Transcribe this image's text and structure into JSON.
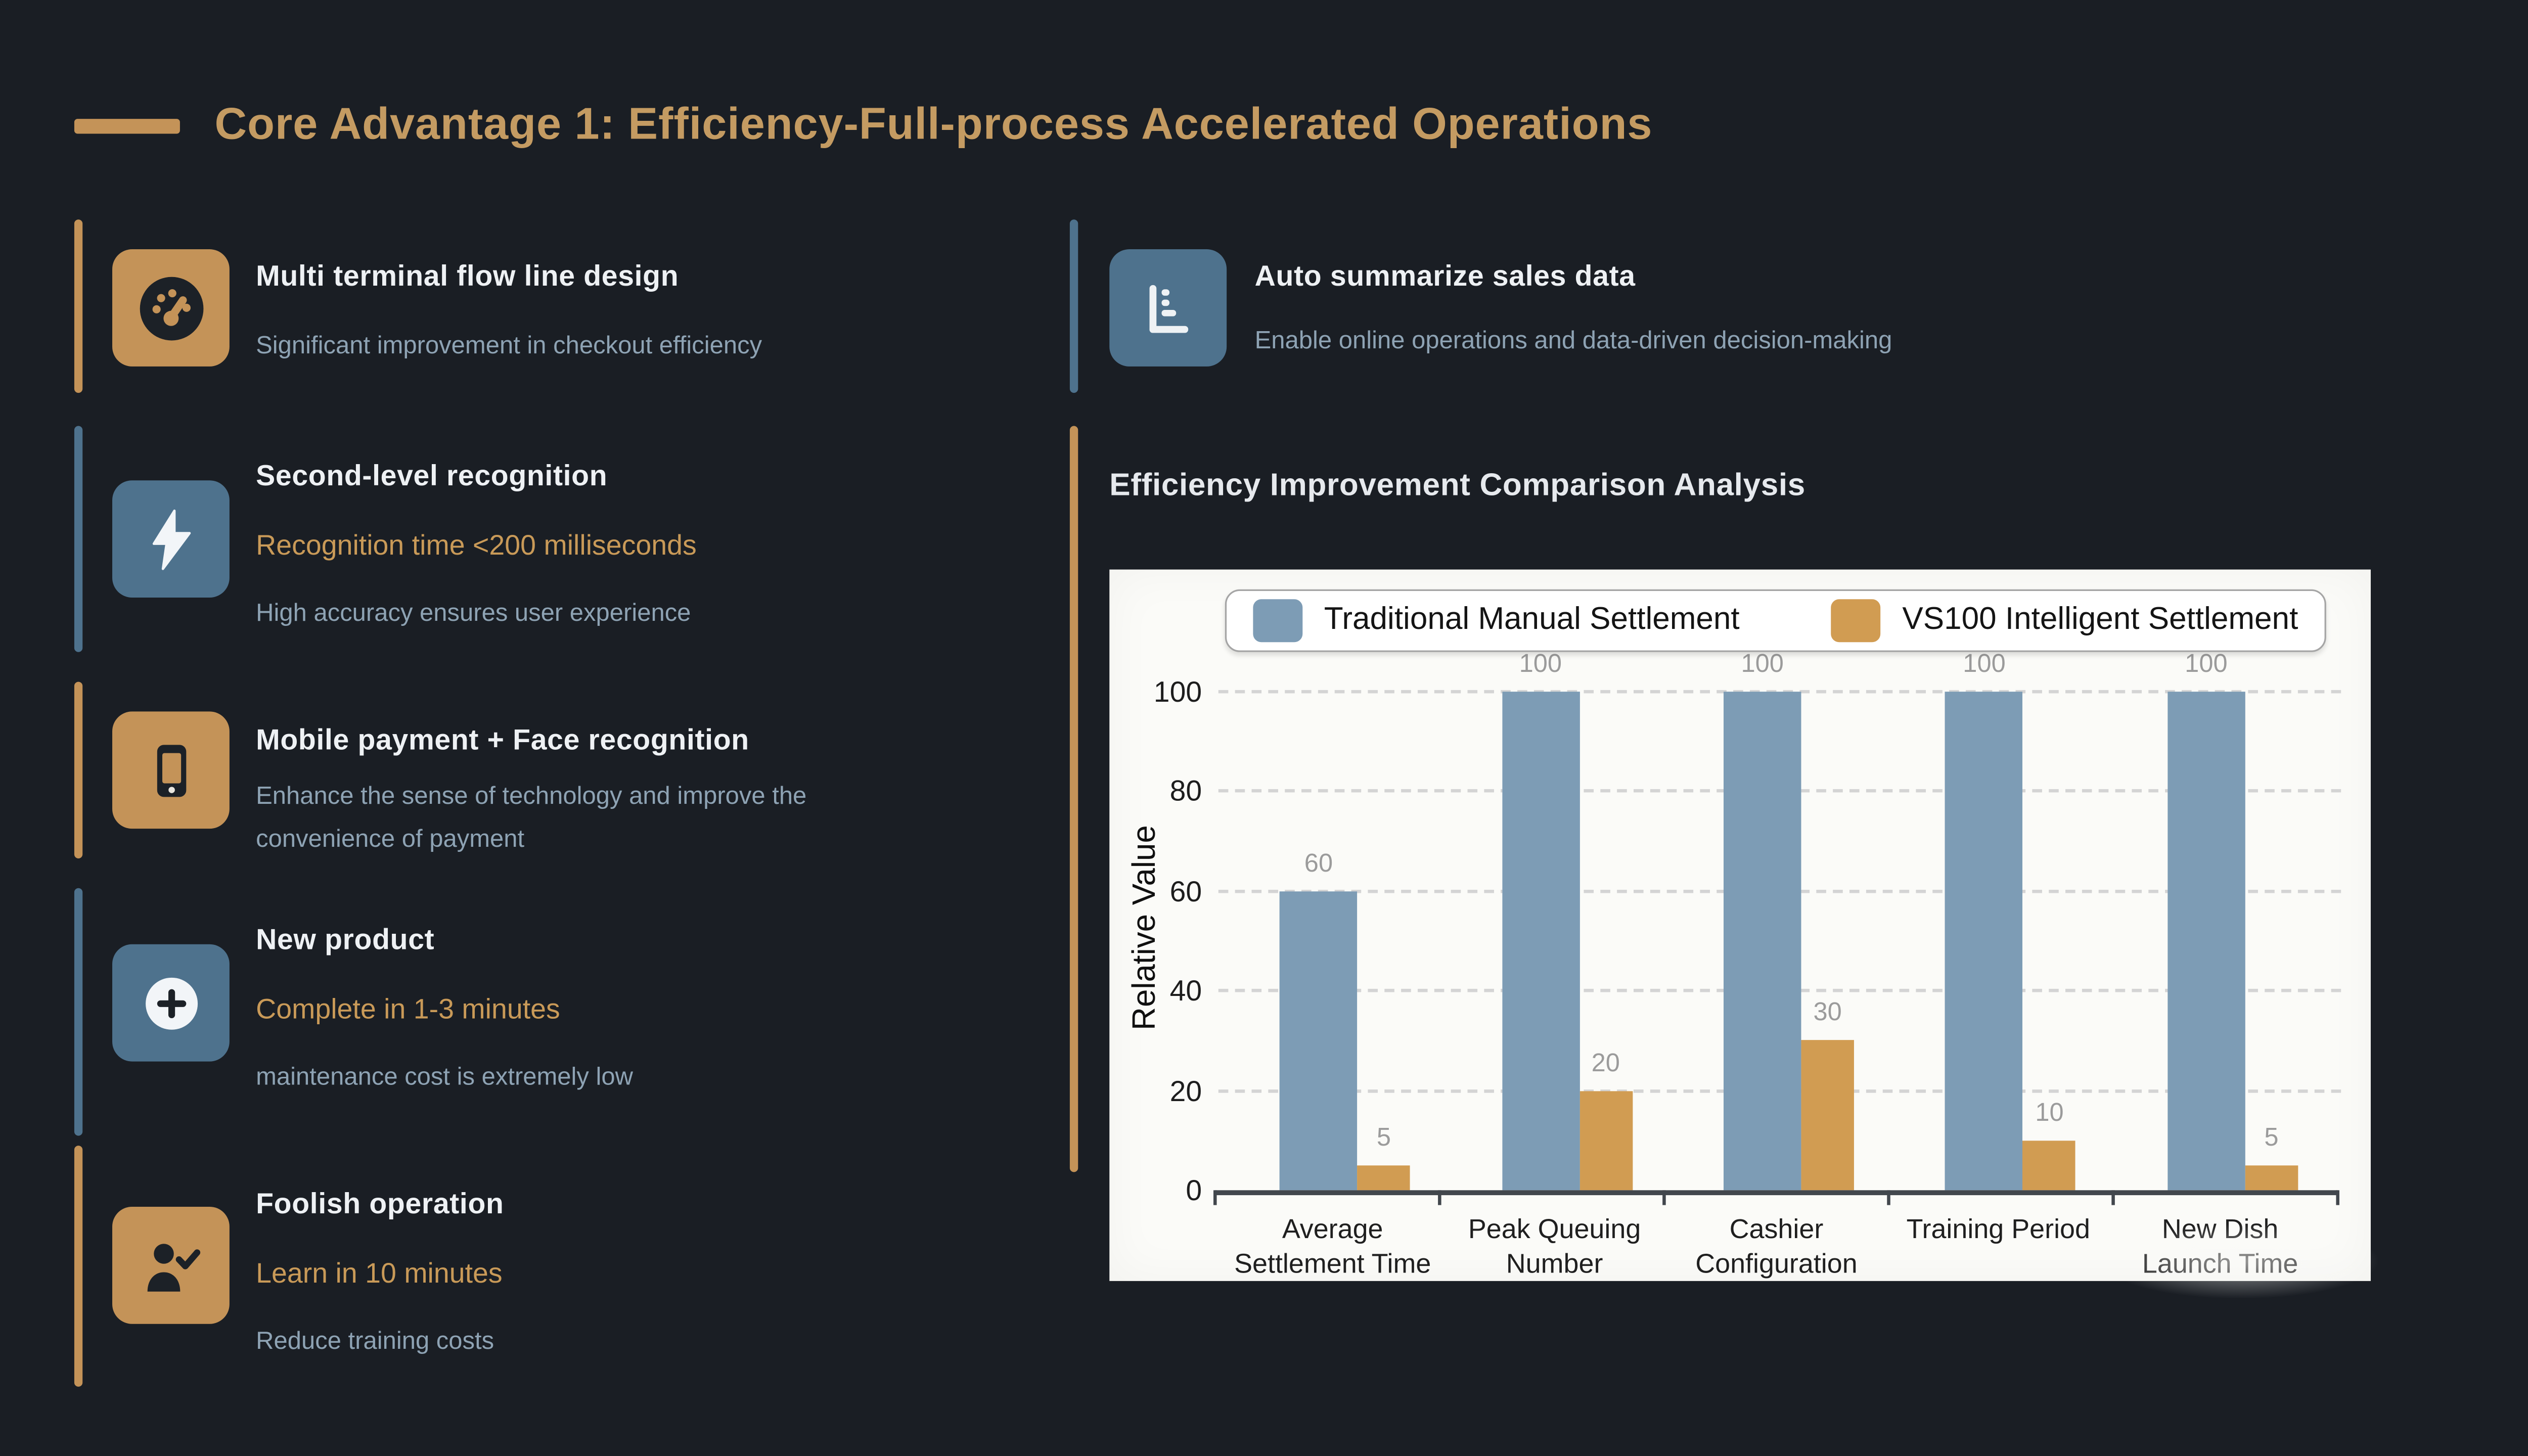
{
  "colors": {
    "background": "#1a1e24",
    "gold": "#c49358",
    "blue": "#4e728d",
    "title_gold": "#c49b62",
    "highlight_gold": "#c99a58",
    "bar_blue": "#7d9cb5",
    "bar_gold": "#d19c52",
    "muted_text": "#8ea3b4",
    "bright_text": "#eef1f4",
    "chart_bg": "#fbfbf8"
  },
  "header": {
    "title": "Core Advantage 1: Efficiency-Full-process Accelerated Operations"
  },
  "features_left": [
    {
      "icon": "gauge-icon",
      "accent": "gold",
      "title": "Multi terminal flow line design",
      "description": "Significant improvement in checkout efficiency"
    },
    {
      "icon": "lightning-bolt-icon",
      "accent": "blue",
      "title": "Second-level recognition",
      "highlight": "Recognition time <200 milliseconds",
      "description": "High accuracy ensures user experience"
    },
    {
      "icon": "smartphone-icon",
      "accent": "gold",
      "title": "Mobile payment + Face recognition",
      "description": "Enhance the sense of technology and improve the convenience of payment"
    },
    {
      "icon": "plus-circle-icon",
      "accent": "blue",
      "title": "New product",
      "highlight": "Complete in 1-3 minutes",
      "description": "maintenance cost is extremely low"
    },
    {
      "icon": "person-check-icon",
      "accent": "gold",
      "title": "Foolish operation",
      "highlight": "Learn in 10 minutes",
      "description": "Reduce training costs"
    }
  ],
  "feature_right": {
    "icon": "horizontal-bar-chart-icon",
    "accent": "blue",
    "title": "Auto summarize sales data",
    "description": "Enable online operations and data-driven decision-making"
  },
  "chart_section": {
    "title": "Efficiency Improvement Comparison Analysis"
  },
  "chart_data": {
    "type": "bar",
    "title": "Efficiency Improvement Comparison Analysis",
    "categories": [
      "Average\nSettlement Time",
      "Peak Queuing\nNumber",
      "Cashier\nConfiguration",
      "Training Period",
      "New Dish\nLaunch Time"
    ],
    "series": [
      {
        "name": "Traditional Manual Settlement",
        "color": "#7d9cb5",
        "values": [
          60,
          100,
          100,
          100,
          100
        ]
      },
      {
        "name": "VS100 Intelligent Settlement",
        "color": "#d19c52",
        "values": [
          5,
          20,
          30,
          10,
          5
        ]
      }
    ],
    "xlabel": "",
    "ylabel": "Relative Value",
    "ylim": [
      0,
      100
    ],
    "yticks": [
      0,
      20,
      40,
      60,
      80,
      100
    ],
    "grid": true,
    "legend_position": "top-inside",
    "value_labels": true
  }
}
